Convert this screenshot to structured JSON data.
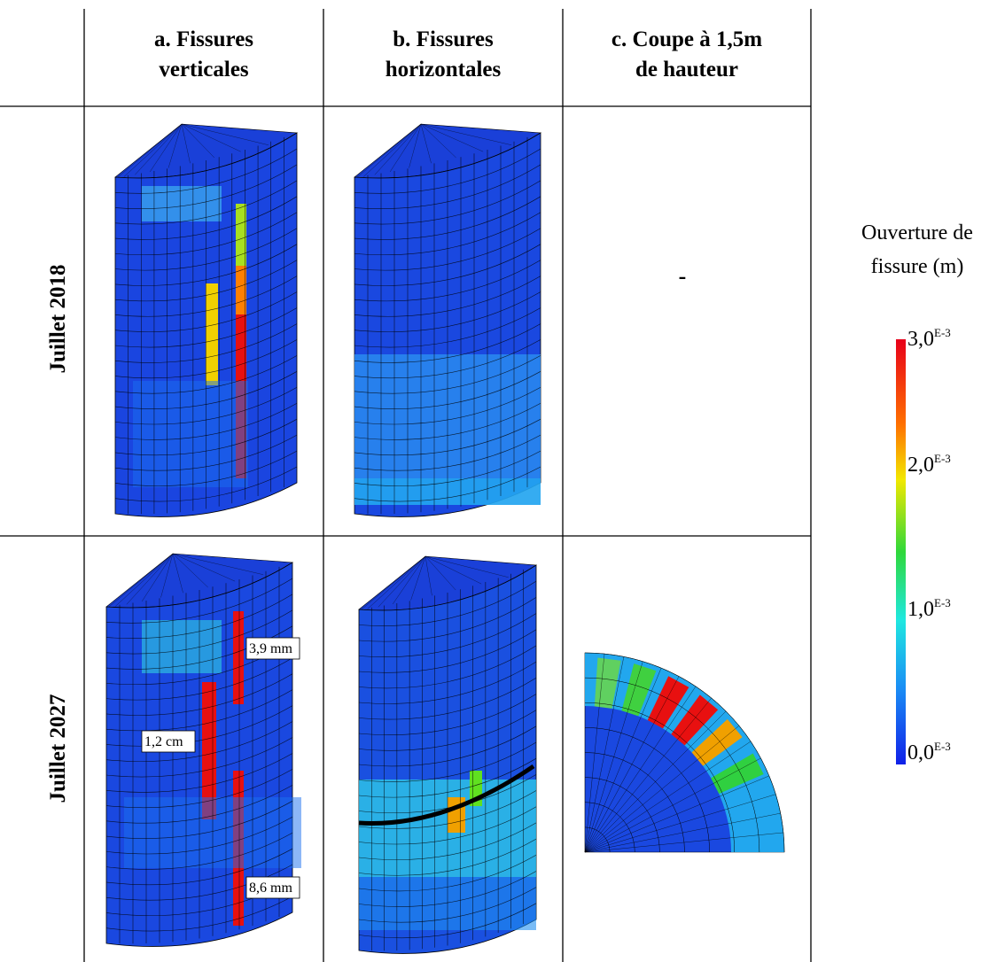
{
  "table": {
    "headers": [
      "a. Fissures verticales",
      "b. Fissures horizontales",
      "c. Coupe à 1,5m de hauteur"
    ],
    "rows": [
      {
        "label": "Juillet 2018",
        "cell_c": "-"
      },
      {
        "label": "Juillet 2027",
        "annotations": [
          "3,9 mm",
          "1,2 cm",
          "8,6 mm"
        ]
      }
    ]
  },
  "legend": {
    "title": [
      "Ouverture de",
      "fissure (m)"
    ],
    "ticks": [
      {
        "base": "3,0",
        "exp": "E-3"
      },
      {
        "base": "2,0",
        "exp": "E-3"
      },
      {
        "base": "1,0",
        "exp": "E-3"
      },
      {
        "base": "0,0",
        "exp": "E-3"
      }
    ]
  }
}
